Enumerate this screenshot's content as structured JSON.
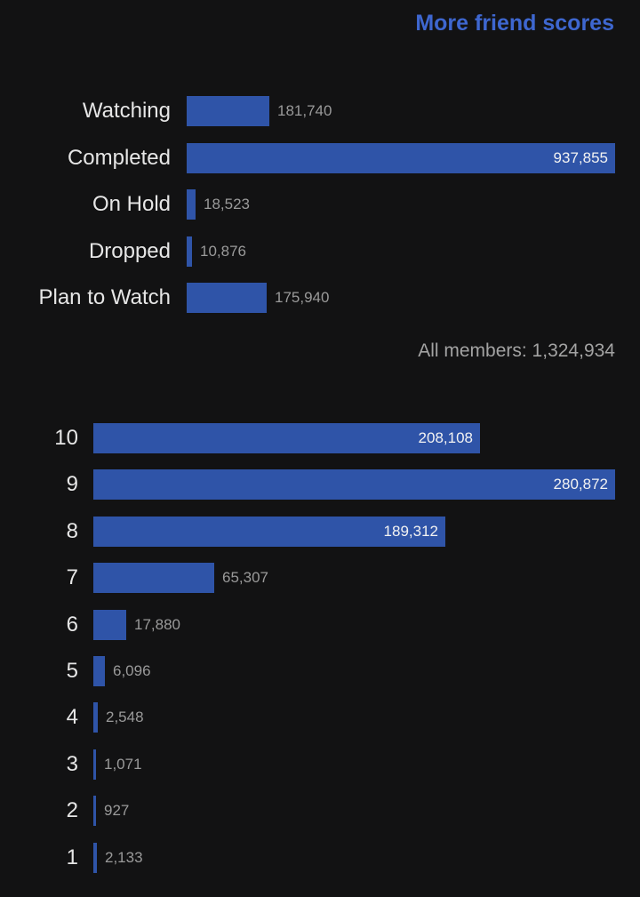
{
  "header": {
    "more_friend_scores": "More friend scores"
  },
  "all_members_text": "All members: 1,324,934",
  "accent_color": "#3e67d0",
  "bar_color": "#2f54a8",
  "chart_data": [
    {
      "type": "bar",
      "orientation": "horizontal",
      "categories": [
        "Watching",
        "Completed",
        "On Hold",
        "Dropped",
        "Plan to Watch"
      ],
      "values": [
        181740,
        937855,
        18523,
        10876,
        175940
      ],
      "labels": [
        "181,740",
        "937,855",
        "18,523",
        "10,876",
        "175,940"
      ],
      "title": "",
      "xlabel": "",
      "ylabel": "",
      "grid": false
    },
    {
      "type": "bar",
      "orientation": "horizontal",
      "categories": [
        "10",
        "9",
        "8",
        "7",
        "6",
        "5",
        "4",
        "3",
        "2",
        "1"
      ],
      "values": [
        208108,
        280872,
        189312,
        65307,
        17880,
        6096,
        2548,
        1071,
        927,
        2133
      ],
      "labels": [
        "208,108",
        "280,872",
        "189,312",
        "65,307",
        "17,880",
        "6,096",
        "2,548",
        "1,071",
        "927",
        "2,133"
      ],
      "title": "",
      "xlabel": "",
      "ylabel": "",
      "grid": false
    }
  ]
}
